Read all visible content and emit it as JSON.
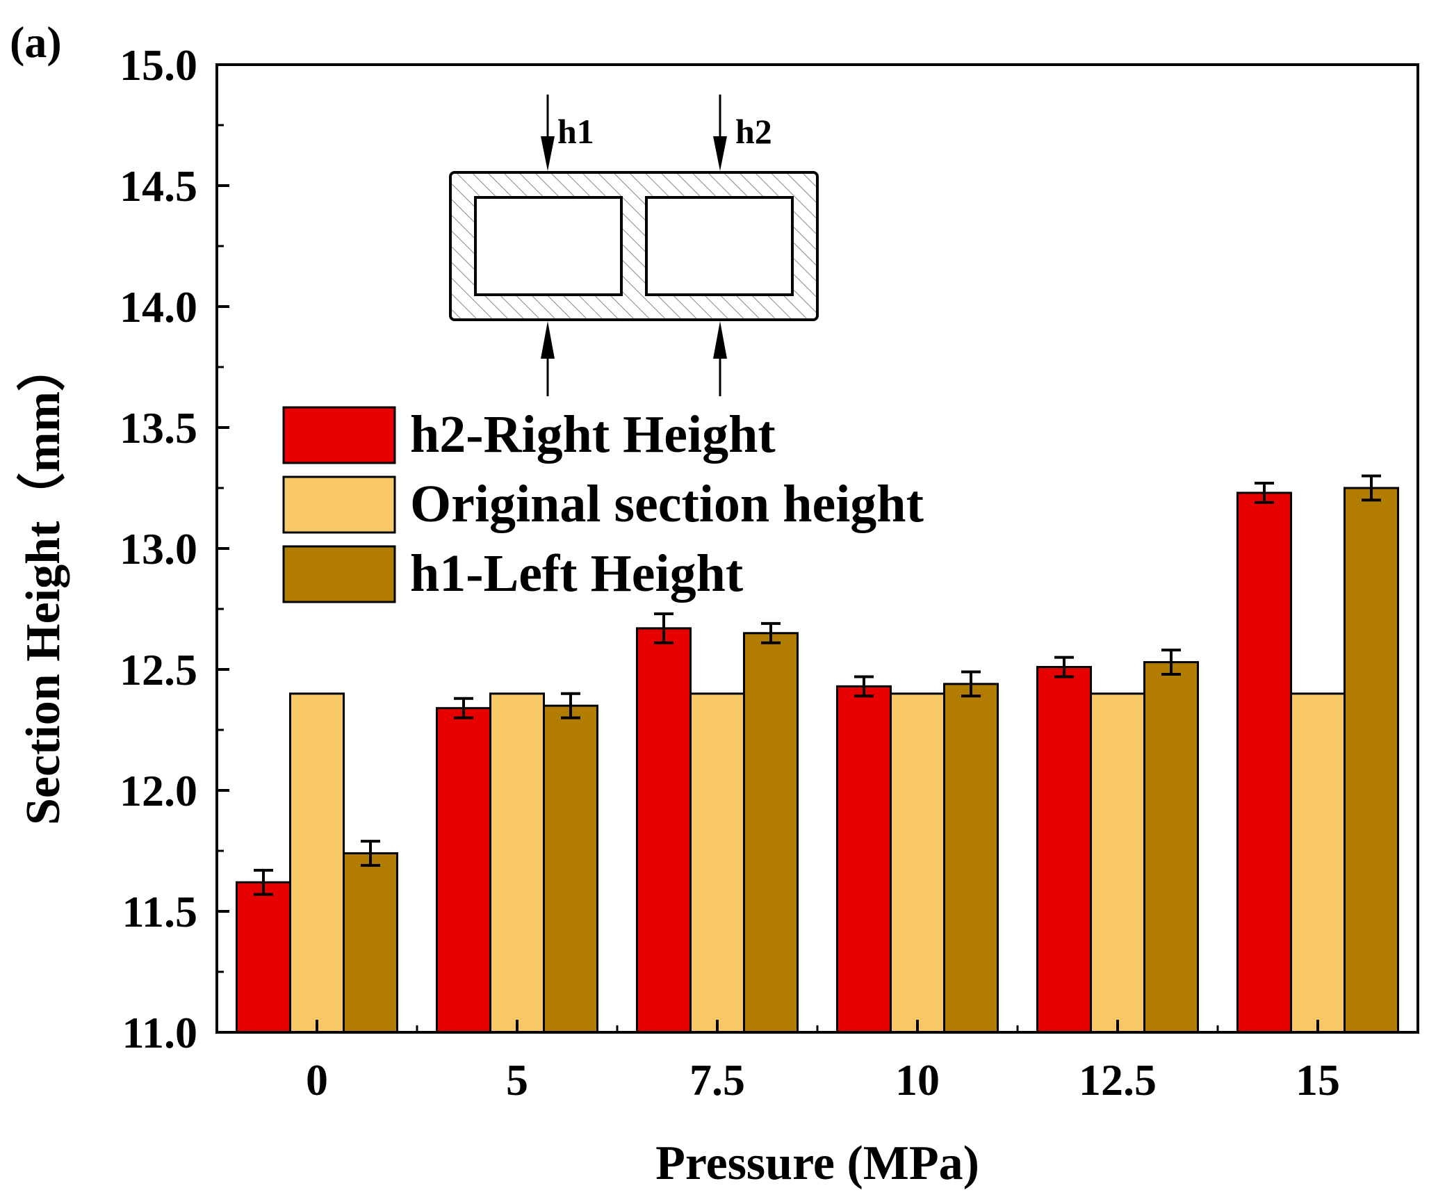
{
  "panel_label": "(a)",
  "colors": {
    "h2": "#e60000",
    "original": "#f8c866",
    "h1": "#b27c00",
    "axis": "#000000"
  },
  "inset": {
    "h1_label": "h1",
    "h2_label": "h2"
  },
  "chart_data": {
    "type": "bar",
    "title": "",
    "xlabel": "Pressure (MPa)",
    "ylabel": "Section Height（mm）",
    "ylim": [
      11.0,
      15.0
    ],
    "yticks": [
      "11.0",
      "11.5",
      "12.0",
      "12.5",
      "13.0",
      "13.5",
      "14.0",
      "14.5",
      "15.0"
    ],
    "categories": [
      "0",
      "5",
      "7.5",
      "10",
      "12.5",
      "15"
    ],
    "legend_position": "upper-left",
    "series": [
      {
        "name": "h2-Right Height",
        "color_key": "h2",
        "values": [
          11.62,
          12.34,
          12.67,
          12.43,
          12.51,
          13.23
        ],
        "errors": [
          0.05,
          0.04,
          0.06,
          0.04,
          0.04,
          0.04
        ]
      },
      {
        "name": "Original section height",
        "color_key": "original",
        "values": [
          12.4,
          12.4,
          12.4,
          12.4,
          12.4,
          12.4
        ],
        "errors": null
      },
      {
        "name": "h1-Left Height",
        "color_key": "h1",
        "values": [
          11.74,
          12.35,
          12.65,
          12.44,
          12.53,
          13.25
        ],
        "errors": [
          0.05,
          0.05,
          0.04,
          0.05,
          0.05,
          0.05
        ]
      }
    ]
  }
}
